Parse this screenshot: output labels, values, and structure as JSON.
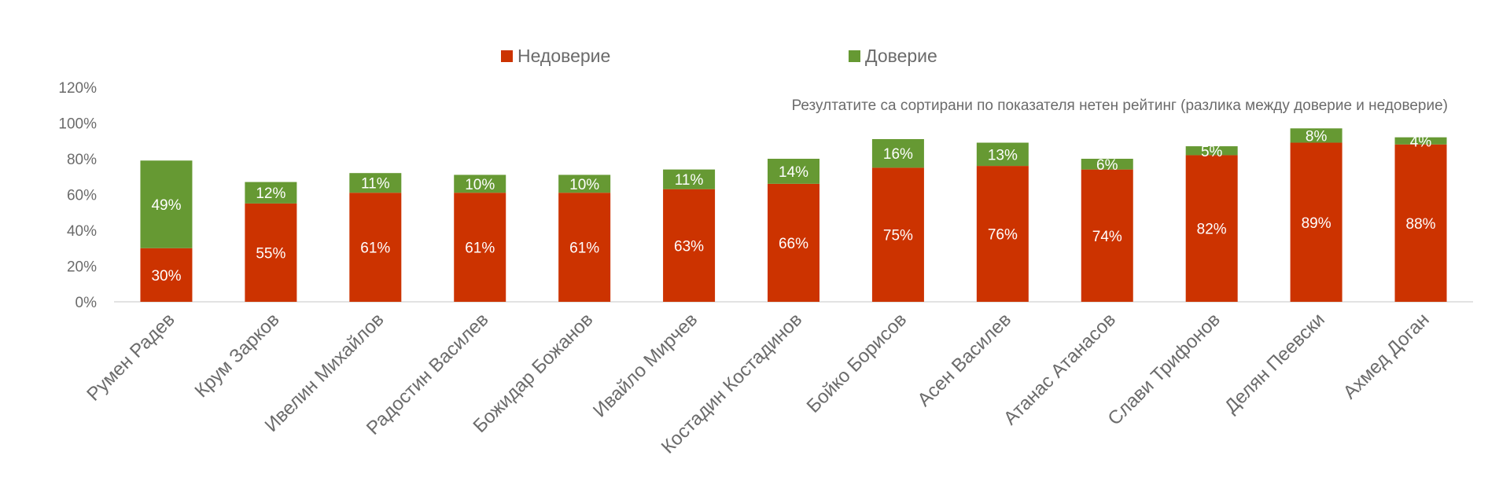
{
  "chart_data": {
    "type": "bar",
    "stacked": true,
    "title": "",
    "note": "Резултатите са сортирани по показателя нетен рейтинг (разлика между доверие и недоверие)",
    "xlabel": "",
    "ylabel": "",
    "ylim": [
      0,
      120
    ],
    "yticks": [
      "0%",
      "20%",
      "40%",
      "60%",
      "80%",
      "100%",
      "120%"
    ],
    "legend_position": "top-center",
    "categories": [
      "Румен Радев",
      "Крум Зарков",
      "Ивелин Михайлов",
      "Радостин Василев",
      "Божидар Божанов",
      "Ивайло Мирчев",
      "Костадин Костадинов",
      "Бойко Борисов",
      "Асен Василев",
      "Атанас Атанасов",
      "Слави Трифонов",
      "Делян Пеевски",
      "Ахмед Доган"
    ],
    "series": [
      {
        "name": "Недоверие",
        "color": "#cc3300",
        "values": [
          30,
          55,
          61,
          61,
          61,
          63,
          66,
          75,
          76,
          74,
          82,
          89,
          88
        ],
        "labels": [
          "30%",
          "55%",
          "61%",
          "61%",
          "61%",
          "63%",
          "66%",
          "75%",
          "76%",
          "74%",
          "82%",
          "89%",
          "88%"
        ]
      },
      {
        "name": "Доверие",
        "color": "#669933",
        "values": [
          49,
          12,
          11,
          10,
          10,
          11,
          14,
          16,
          13,
          6,
          5,
          8,
          4
        ],
        "labels": [
          "49%",
          "12%",
          "11%",
          "10%",
          "10%",
          "11%",
          "14%",
          "16%",
          "13%",
          "6%",
          "5%",
          "8%",
          "4%"
        ]
      }
    ]
  }
}
